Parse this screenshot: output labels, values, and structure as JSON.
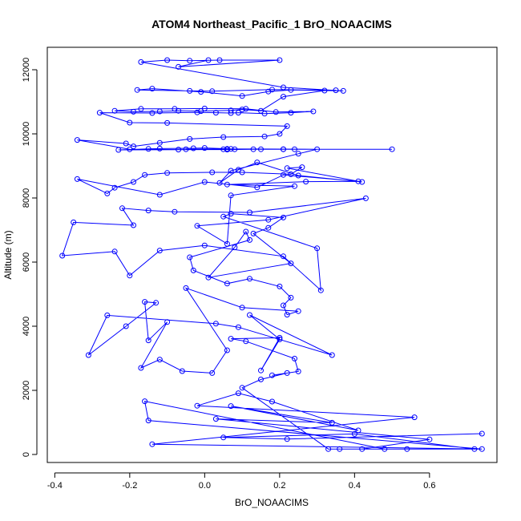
{
  "chart_data": {
    "type": "scatter",
    "title": "ATOM4 Northeast_Pacific_1 BrO_NOAACIMS",
    "xlabel": "BrO_NOAACIMS",
    "ylabel": "Altitude (m)",
    "xlim": [
      -0.42,
      0.78
    ],
    "ylim": [
      -250,
      12700
    ],
    "xticks": [
      -0.4,
      -0.2,
      0.0,
      0.2,
      0.4,
      0.6
    ],
    "xtick_labels": [
      "-0.4",
      "-0.2",
      "0.0",
      "0.2",
      "0.4",
      "0.6"
    ],
    "yticks": [
      0,
      2000,
      4000,
      6000,
      8000,
      10000,
      12000
    ],
    "ytick_labels": [
      "0",
      "2000",
      "4000",
      "6000",
      "8000",
      "10000",
      "12000"
    ],
    "grid": false,
    "legend": "none",
    "series_color": "#0000ff",
    "series": [
      {
        "x": [
          0.74,
          0.22,
          0.05,
          0.4,
          0.72,
          0.42,
          0.6,
          0.03,
          0.34,
          0.07,
          0.41,
          0.18,
          0.09,
          -0.02,
          0.56,
          -0.14,
          0.74,
          -0.15,
          -0.16,
          0.48,
          0.54,
          0.36,
          0.33,
          0.1,
          0.15,
          0.22,
          0.18,
          0.25,
          0.24,
          0.11,
          0.07,
          0.2,
          0.15,
          0.2,
          0.12,
          0.34,
          0.09,
          0.03,
          -0.26,
          -0.31,
          -0.21,
          -0.13,
          -0.16,
          -0.15,
          -0.1,
          -0.17,
          -0.12,
          -0.06,
          0.02,
          0.06,
          -0.05,
          0.1,
          0.25,
          0.22,
          0.21,
          0.23,
          0.2,
          0.12,
          0.06,
          -0.03,
          -0.04,
          0.12,
          0.11,
          0.08,
          0.01,
          0.23,
          0.13,
          0.17,
          0.21,
          0.07,
          0.05,
          0.3,
          0.31,
          0.21,
          0.0,
          -0.12,
          -0.2,
          -0.24,
          -0.38,
          -0.35,
          -0.19,
          -0.22,
          -0.15,
          -0.08,
          0.12,
          0.43,
          0.17,
          -0.02,
          0.06,
          0.07,
          0.24,
          0.06,
          0.27,
          0.41,
          0.21,
          0.14,
          0.0,
          -0.12,
          -0.34,
          -0.26,
          -0.24,
          -0.19,
          -0.16,
          -0.1,
          0.02,
          0.1,
          0.23,
          0.26,
          0.22,
          0.42,
          0.25,
          0.14,
          0.09,
          0.04,
          0.07,
          0.25,
          0.3,
          0.06,
          -0.05,
          0.08,
          0.24,
          0.21,
          0.13,
          0.06,
          -0.23,
          -0.15,
          -0.12,
          -0.03,
          0.0,
          0.07,
          0.21,
          0.5,
          0.15,
          0.05,
          -0.07,
          -0.2,
          -0.34,
          -0.21,
          -0.19,
          -0.12,
          -0.04,
          0.05,
          0.16,
          0.2,
          0.22,
          -0.1,
          -0.2,
          -0.28,
          -0.14,
          -0.02,
          0.03,
          0.07,
          0.09,
          0.16,
          0.23,
          0.29,
          0.19,
          0.11,
          0.0,
          -0.08,
          -0.17,
          -0.24,
          -0.19,
          -0.12,
          -0.07,
          -0.01,
          0.07,
          0.1,
          0.15,
          0.21,
          0.32,
          0.35,
          0.18,
          0.02,
          -0.04,
          -0.18,
          -0.14,
          -0.01,
          0.1,
          0.17,
          0.23,
          0.37,
          0.21,
          -0.17,
          -0.1,
          -0.04,
          0.04,
          0.2,
          -0.07,
          0.01
        ],
        "y": [
          650,
          480,
          530,
          640,
          170,
          170,
          470,
          1110,
          990,
          1510,
          750,
          1650,
          1910,
          1520,
          1160,
          320,
          170,
          1060,
          1660,
          170,
          170,
          170,
          170,
          2080,
          2340,
          2540,
          2470,
          2590,
          2990,
          3530,
          3610,
          3640,
          2620,
          3590,
          4350,
          3100,
          3970,
          4080,
          4340,
          3100,
          4000,
          4730,
          4760,
          3560,
          4130,
          2700,
          2960,
          2600,
          2540,
          3250,
          5190,
          4580,
          4470,
          4360,
          4650,
          4890,
          5240,
          5480,
          5330,
          5740,
          6150,
          6690,
          6950,
          6460,
          5520,
          5960,
          6890,
          7070,
          7390,
          7510,
          7420,
          6430,
          5120,
          6180,
          6520,
          6360,
          5580,
          6330,
          6200,
          7240,
          7150,
          7680,
          7610,
          7570,
          7550,
          7990,
          7320,
          7130,
          6570,
          8080,
          8370,
          8420,
          8510,
          8520,
          8720,
          8330,
          8500,
          8100,
          8590,
          8140,
          8320,
          8500,
          8720,
          8780,
          8800,
          8800,
          8740,
          8960,
          8930,
          8500,
          8700,
          9110,
          8880,
          8470,
          8850,
          9380,
          9520,
          9530,
          9520,
          9520,
          9520,
          9520,
          9520,
          9510,
          9500,
          9530,
          9540,
          9550,
          9560,
          9530,
          9520,
          9520,
          9520,
          9520,
          9510,
          9520,
          9810,
          9700,
          9610,
          9720,
          9840,
          9900,
          9920,
          10000,
          10240,
          10340,
          10350,
          10660,
          10650,
          10670,
          10660,
          10650,
          10660,
          10630,
          10660,
          10700,
          10680,
          10780,
          10790,
          10780,
          10780,
          10720,
          10690,
          10700,
          10720,
          10710,
          10730,
          10760,
          10720,
          11160,
          11350,
          11360,
          11380,
          11330,
          11340,
          11370,
          11410,
          11310,
          11180,
          11320,
          11370,
          11340,
          11450,
          12240,
          12300,
          12280,
          12300,
          12300,
          12090,
          12300
        ]
      }
    ]
  }
}
